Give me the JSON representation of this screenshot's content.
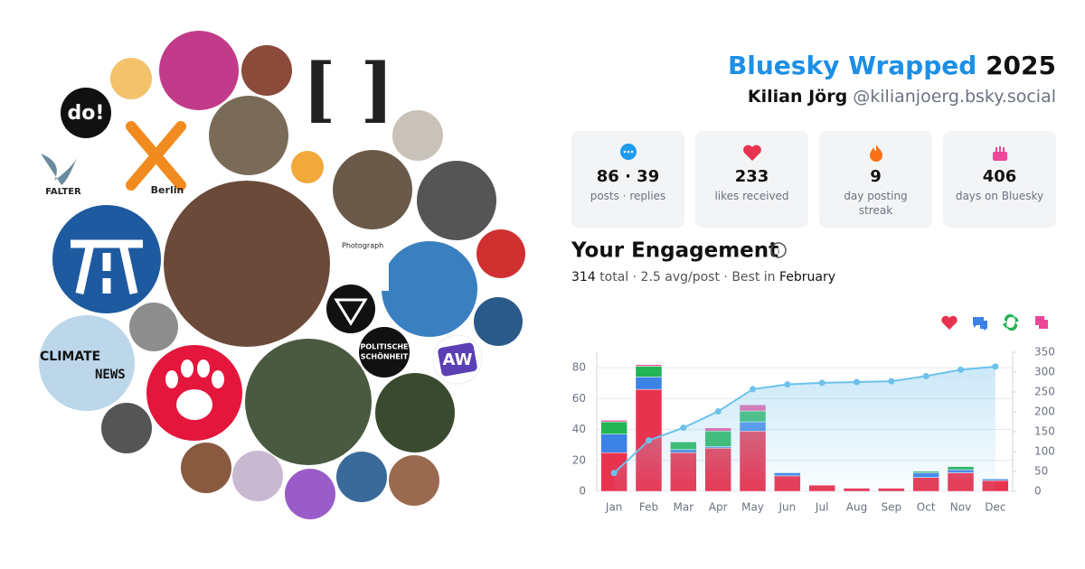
{
  "header": {
    "title": "Bluesky Wrapped",
    "year": "2025",
    "name": "Kilian Jörg",
    "handle": "@kilianjoerg.bsky.social"
  },
  "stats": [
    {
      "value": "86 · 39",
      "label": "posts · replies"
    },
    {
      "value": "233",
      "label": "likes received"
    },
    {
      "value": "9",
      "label": "day posting streak"
    },
    {
      "value": "406",
      "label": "days on Bluesky"
    }
  ],
  "engagement": {
    "title": "Your Engagement",
    "total": "314",
    "summary": "total · 2.5 avg/post · Best in",
    "best": "February"
  },
  "collage": {
    "labels": [
      "do!",
      "Berlin",
      "FALTER",
      "CLIMATE",
      "NEWS",
      "POLITISCHE",
      "SCHÖNHEIT",
      "AW",
      "[ ]",
      "Photograph"
    ]
  },
  "chart_data": {
    "type": "bar",
    "stacked": true,
    "categories": [
      "Jan",
      "Feb",
      "Mar",
      "Apr",
      "May",
      "Jun",
      "Jul",
      "Aug",
      "Sep",
      "Oct",
      "Nov",
      "Dec"
    ],
    "series": [
      {
        "color": "#e8334f",
        "values": [
          25,
          66,
          25,
          28,
          39,
          10,
          4,
          2,
          2,
          9,
          12,
          7
        ]
      },
      {
        "color": "#3b82e6",
        "values": [
          12,
          8,
          2,
          1,
          6,
          2,
          0,
          0,
          0,
          3,
          2,
          1
        ]
      },
      {
        "color": "#22b455",
        "values": [
          8,
          7,
          5,
          10,
          7,
          0,
          0,
          0,
          0,
          1,
          2,
          0
        ]
      },
      {
        "color": "#ec4899",
        "values": [
          1,
          1,
          0,
          2,
          4,
          0,
          0,
          0,
          0,
          0,
          0,
          0
        ]
      },
      {
        "color": "#6cc1ec",
        "type": "line",
        "axis": "y2",
        "values": [
          46,
          128,
          160,
          201,
          257,
          269,
          273,
          275,
          277,
          290,
          306,
          314
        ]
      }
    ],
    "ylim": [
      0,
      90
    ],
    "yticks": [
      0,
      20,
      40,
      60,
      80
    ],
    "y2lim": [
      0,
      350
    ],
    "y2ticks": [
      0,
      50,
      100,
      150,
      200,
      250,
      300,
      350
    ],
    "grid": true
  }
}
